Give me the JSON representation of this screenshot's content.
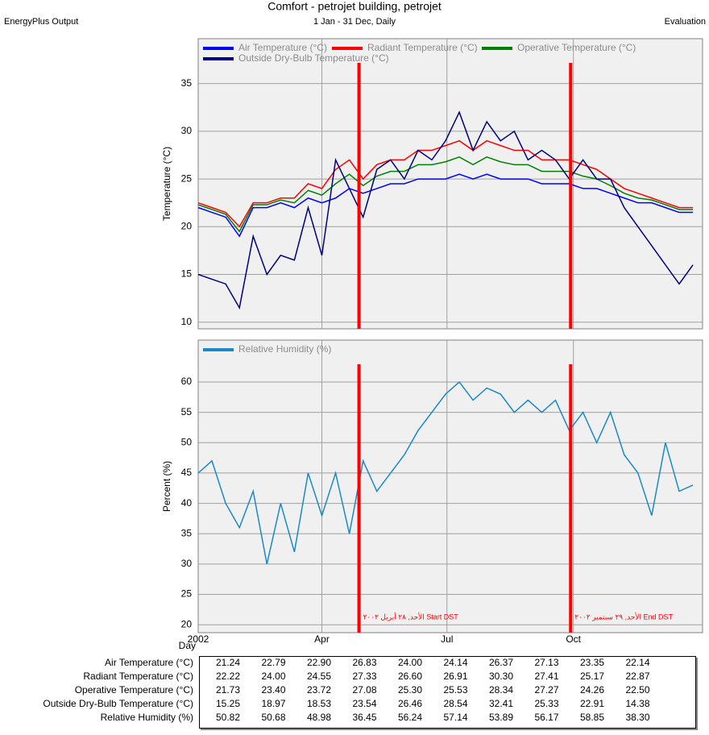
{
  "header": {
    "title": "Comfort - petrojet building, petrojet",
    "subtitle": "1 Jan - 31 Dec, Daily",
    "left": "EnergyPlus Output",
    "right": "Evaluation"
  },
  "chart_data": [
    {
      "type": "line",
      "y_label": "Temperature (°C)",
      "x": [
        1,
        11,
        21,
        31,
        41,
        51,
        61,
        71,
        81,
        91,
        101,
        111,
        121,
        131,
        141,
        151,
        161,
        171,
        181,
        191,
        201,
        211,
        221,
        231,
        241,
        251,
        261,
        271,
        281,
        291,
        301,
        311,
        321,
        331,
        341,
        351,
        361
      ],
      "xlim": [
        1,
        368
      ],
      "xticks": [
        1,
        91,
        182,
        274
      ],
      "ylim": [
        9.3,
        39.7
      ],
      "yticks": [
        10,
        15,
        20,
        25,
        30,
        35
      ],
      "grid": true,
      "vlines": [
        118,
        272
      ],
      "vline_color": "#ff0000",
      "series": [
        {
          "name": "Air Temperature (°C)",
          "color": "#0000ff",
          "values": [
            22,
            21.5,
            21,
            19,
            22,
            22,
            22.5,
            22,
            23,
            22.5,
            23,
            24,
            23.5,
            24,
            24.5,
            24.5,
            25,
            25,
            25,
            25.5,
            25,
            25.5,
            25,
            25,
            25,
            24.5,
            24.5,
            24.5,
            24,
            24,
            23.5,
            23,
            22.5,
            22.5,
            22,
            21.5,
            21.5
          ]
        },
        {
          "name": "Radiant Temperature (°C)",
          "color": "#ff0000",
          "values": [
            22.5,
            22,
            21.5,
            20,
            22.5,
            22.5,
            23,
            23,
            24.5,
            24,
            26,
            27,
            25,
            26.5,
            27,
            27,
            28,
            28,
            28.5,
            29,
            28,
            29,
            28.5,
            28,
            28,
            27,
            27,
            27,
            26.5,
            26,
            25,
            24,
            23.5,
            23,
            22.5,
            22,
            22
          ]
        },
        {
          "name": "Operative Temperature (°C)",
          "color": "#008000",
          "values": [
            22.3,
            21.8,
            21.3,
            19.5,
            22.3,
            22.3,
            22.8,
            22.5,
            23.8,
            23.3,
            24.5,
            25.5,
            24.3,
            25.3,
            25.8,
            25.8,
            26.5,
            26.5,
            26.8,
            27.3,
            26.5,
            27.3,
            26.8,
            26.5,
            26.5,
            25.8,
            25.8,
            25.8,
            25.3,
            25,
            24.3,
            23.5,
            23,
            22.8,
            22.3,
            21.8,
            21.8
          ]
        },
        {
          "name": "Outside Dry-Bulb Temperature (°C)",
          "color": "#000080",
          "values": [
            15,
            14.5,
            14,
            11.5,
            19,
            15,
            17,
            16.5,
            22,
            17,
            27,
            24,
            21,
            26,
            27,
            25,
            28,
            27,
            29,
            32,
            28,
            31,
            29,
            30,
            27,
            28,
            27,
            25,
            27,
            25,
            25,
            22,
            20,
            18,
            16,
            14,
            16
          ]
        }
      ]
    },
    {
      "type": "line",
      "y_label": "Percent (%)",
      "x_label": "Day",
      "x": [
        1,
        11,
        21,
        31,
        41,
        51,
        61,
        71,
        81,
        91,
        101,
        111,
        121,
        131,
        141,
        151,
        161,
        171,
        181,
        191,
        201,
        211,
        221,
        231,
        241,
        251,
        261,
        271,
        281,
        291,
        301,
        311,
        321,
        331,
        341,
        351,
        361
      ],
      "xlim": [
        1,
        368
      ],
      "xticks": [
        {
          "value": 1,
          "label": "2002"
        },
        {
          "value": 91,
          "label": "Apr"
        },
        {
          "value": 182,
          "label": "Jul"
        },
        {
          "value": 274,
          "label": "Oct"
        }
      ],
      "ylim": [
        18.7,
        66.9
      ],
      "yticks": [
        20,
        25,
        30,
        35,
        40,
        45,
        50,
        55,
        60
      ],
      "grid": true,
      "vlines": [
        {
          "value": 118,
          "label": "الأحد, ٢٨ أبريل ٢٠٠٢ Start DST"
        },
        {
          "value": 272,
          "label": "الأحد, ٢٩ سبتمبر ٢٠٠٢ End DST"
        }
      ],
      "vline_color": "#ff0000",
      "series": [
        {
          "name": "Relative Humidity (%)",
          "color": "#1a8ac6",
          "values": [
            45,
            47,
            40,
            36,
            42,
            30,
            40,
            32,
            45,
            38,
            45,
            35,
            47,
            42,
            45,
            48,
            52,
            55,
            58,
            60,
            57,
            59,
            58,
            55,
            57,
            55,
            57,
            52,
            55,
            50,
            55,
            48,
            45,
            38,
            50,
            42,
            43
          ]
        }
      ]
    }
  ],
  "table": {
    "rows": [
      {
        "label": "Air Temperature (°C)",
        "values": [
          "21.24",
          "22.79",
          "22.90",
          "26.83",
          "24.00",
          "24.14",
          "26.37",
          "27.13",
          "23.35",
          "22.14"
        ]
      },
      {
        "label": "Radiant Temperature (°C)",
        "values": [
          "22.22",
          "24.00",
          "24.55",
          "27.33",
          "26.60",
          "26.91",
          "30.30",
          "27.41",
          "25.17",
          "22.87"
        ]
      },
      {
        "label": "Operative Temperature (°C)",
        "values": [
          "21.73",
          "23.40",
          "23.72",
          "27.08",
          "25.30",
          "25.53",
          "28.34",
          "27.27",
          "24.26",
          "22.50"
        ]
      },
      {
        "label": "Outside Dry-Bulb Temperature (°C)",
        "values": [
          "15.25",
          "18.97",
          "18.53",
          "23.54",
          "26.46",
          "28.54",
          "32.41",
          "25.33",
          "22.91",
          "14.38"
        ]
      },
      {
        "label": "Relative Humidity (%)",
        "values": [
          "50.82",
          "50.68",
          "48.98",
          "36.45",
          "56.24",
          "57.14",
          "53.89",
          "56.17",
          "58.85",
          "38.30"
        ]
      }
    ]
  }
}
